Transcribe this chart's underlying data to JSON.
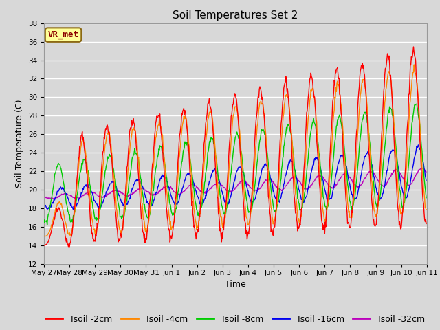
{
  "title": "Soil Temperatures Set 2",
  "xlabel": "Time",
  "ylabel": "Soil Temperature (C)",
  "ylim": [
    12,
    38
  ],
  "yticks": [
    12,
    14,
    16,
    18,
    20,
    22,
    24,
    26,
    28,
    30,
    32,
    34,
    36,
    38
  ],
  "plot_bg_color": "#d8d8d8",
  "fig_bg_color": "#d8d8d8",
  "grid_color": "#ffffff",
  "series_colors": {
    "Tsoil -2cm": "#ff0000",
    "Tsoil -4cm": "#ff8800",
    "Tsoil -8cm": "#00cc00",
    "Tsoil -16cm": "#0000ee",
    "Tsoil -32cm": "#bb00bb"
  },
  "annotation_text": "VR_met",
  "annotation_color": "#8b0000",
  "annotation_bg": "#ffff99",
  "annotation_border": "#8b6914",
  "n_days": 15,
  "n_points_per_day": 48,
  "x_tick_labels": [
    "May 27",
    "May 28",
    "May 29",
    "May 30",
    "May 31",
    "Jun 1",
    "Jun 2",
    "Jun 3",
    "Jun 4",
    "Jun 5",
    "Jun 6",
    "Jun 7",
    "Jun 8",
    "Jun 9",
    "Jun 10",
    "Jun 11"
  ],
  "title_fontsize": 11,
  "axis_label_fontsize": 9,
  "tick_label_fontsize": 7.5,
  "legend_fontsize": 9
}
